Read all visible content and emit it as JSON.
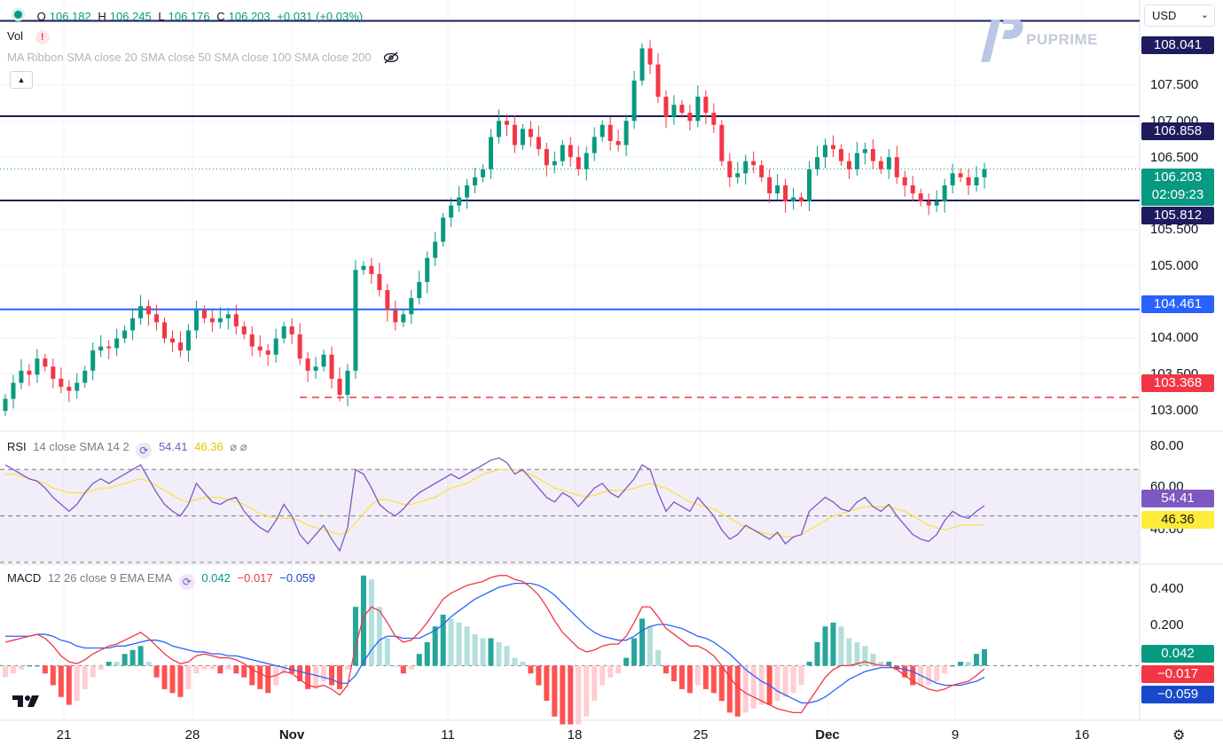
{
  "symbol_dot_color": "#089981",
  "ohlc": {
    "o_label": "O",
    "o_value": "106.182",
    "h_label": "H",
    "h_value": "106.245",
    "l_label": "L",
    "l_value": "106.176",
    "c_label": "C",
    "c_value": "106.203",
    "change": "+0.031 (+0.03%)"
  },
  "vol": {
    "label": "Vol",
    "warning": "!"
  },
  "ma_ribbon": {
    "label": "MA Ribbon SMA close 20 SMA close 50 SMA close 100 SMA close 200"
  },
  "collapse_icon": "▲",
  "currency": {
    "value": "USD",
    "chevron": "⌄"
  },
  "brand": {
    "name": "PUPRIME"
  },
  "price_axis": {
    "ticks": [
      "107.500",
      "107.000",
      "106.500",
      "105.500",
      "105.000",
      "104.000",
      "103.500",
      "103.000"
    ]
  },
  "price_tags": [
    {
      "value": "108.041",
      "color": "#1e1b5e"
    },
    {
      "value": "106.858",
      "color": "#1e1b5e"
    },
    {
      "value": "106.203",
      "sub": "02:09:23",
      "color": "#089981"
    },
    {
      "value": "105.812",
      "color": "#1e1b5e"
    },
    {
      "value": "104.461",
      "color": "#2962ff"
    },
    {
      "value": "103.368",
      "color": "#f23645"
    }
  ],
  "rsi": {
    "label": "RSI",
    "params": "14 close SMA 14 2",
    "value1": "54.41",
    "value2": "46.36",
    "ticks": [
      "80.00",
      "60.00",
      "40.00"
    ],
    "tag1": {
      "value": "54.41",
      "color": "#7e57c2"
    },
    "tag2": {
      "value": "46.36",
      "color": "#ffeb3b"
    }
  },
  "macd": {
    "label": "MACD",
    "params": "12 26 close 9 EMA EMA",
    "value1": "0.042",
    "value2": "−0.017",
    "value3": "−0.059",
    "ticks": [
      "0.400",
      "0.200"
    ],
    "tag1": {
      "value": "0.042",
      "color": "#089981"
    },
    "tag2": {
      "value": "−0.017",
      "color": "#f23645"
    },
    "tag3": {
      "value": "−0.059",
      "color": "#1848cc"
    }
  },
  "date_axis": [
    {
      "label": "21",
      "bold": false
    },
    {
      "label": "28",
      "bold": false
    },
    {
      "label": "Nov",
      "bold": true
    },
    {
      "label": "11",
      "bold": false
    },
    {
      "label": "18",
      "bold": false
    },
    {
      "label": "25",
      "bold": false
    },
    {
      "label": "Dec",
      "bold": true
    },
    {
      "label": "9",
      "bold": false
    },
    {
      "label": "16",
      "bold": false
    }
  ],
  "logo": "TV",
  "settings_icon": "⚙",
  "chart_data": {
    "type": "candlestick",
    "price": {
      "ylim": [
        102.95,
        108.3
      ],
      "horizontal_lines": [
        {
          "value": 108.041,
          "color": "#1e1b5e",
          "style": "solid"
        },
        {
          "value": 106.858,
          "color": "#1e1b5e",
          "style": "solid"
        },
        {
          "value": 105.812,
          "color": "#1e1b5e",
          "style": "solid"
        },
        {
          "value": 104.461,
          "color": "#2962ff",
          "style": "solid"
        },
        {
          "value": 103.368,
          "color": "#f23645",
          "style": "dashed"
        }
      ],
      "last_price": 106.203,
      "closes": [
        103.35,
        103.55,
        103.7,
        103.65,
        103.85,
        103.75,
        103.6,
        103.5,
        103.45,
        103.55,
        103.7,
        103.95,
        104.0,
        103.98,
        104.1,
        104.2,
        104.35,
        104.5,
        104.4,
        104.3,
        104.1,
        104.05,
        103.95,
        104.2,
        104.45,
        104.35,
        104.3,
        104.35,
        104.4,
        104.25,
        104.15,
        104.0,
        103.95,
        103.9,
        104.1,
        104.25,
        104.15,
        103.85,
        103.7,
        103.75,
        103.9,
        103.6,
        103.4,
        103.7,
        104.95,
        105.0,
        104.9,
        104.7,
        104.45,
        104.3,
        104.4,
        104.6,
        104.8,
        105.1,
        105.3,
        105.6,
        105.75,
        105.85,
        106.0,
        106.1,
        106.2,
        106.6,
        106.8,
        106.75,
        106.5,
        106.7,
        106.6,
        106.45,
        106.25,
        106.3,
        106.5,
        106.35,
        106.2,
        106.4,
        106.6,
        106.75,
        106.55,
        106.5,
        106.8,
        107.3,
        107.7,
        107.5,
        107.1,
        106.85,
        107.0,
        106.9,
        106.8,
        107.1,
        106.9,
        106.75,
        106.3,
        106.1,
        106.15,
        106.3,
        106.25,
        106.1,
        105.9,
        106.0,
        105.8,
        105.85,
        105.8,
        106.2,
        106.35,
        106.5,
        106.45,
        106.3,
        106.2,
        106.4,
        106.45,
        106.3,
        106.2,
        106.35,
        106.1,
        106.0,
        105.9,
        105.8,
        105.75,
        105.8,
        106.0,
        106.15,
        106.1,
        106.0,
        106.1,
        106.2
      ],
      "x_count": 124
    },
    "rsi": {
      "ylim": [
        30,
        85
      ],
      "band": [
        70,
        30
      ],
      "mid": 50,
      "rsi": [
        72,
        70,
        68,
        66,
        65,
        62,
        58,
        55,
        52,
        55,
        60,
        64,
        66,
        64,
        66,
        68,
        70,
        72,
        66,
        60,
        55,
        52,
        50,
        55,
        64,
        60,
        56,
        55,
        57,
        58,
        52,
        48,
        45,
        43,
        48,
        55,
        50,
        42,
        38,
        42,
        46,
        40,
        35,
        45,
        70,
        68,
        62,
        55,
        52,
        50,
        53,
        57,
        60,
        62,
        64,
        66,
        68,
        66,
        68,
        70,
        72,
        74,
        75,
        73,
        68,
        70,
        66,
        62,
        58,
        56,
        60,
        58,
        54,
        58,
        62,
        64,
        60,
        58,
        62,
        66,
        72,
        70,
        60,
        52,
        56,
        54,
        52,
        58,
        54,
        50,
        44,
        40,
        42,
        46,
        44,
        42,
        40,
        43,
        38,
        41,
        42,
        52,
        55,
        58,
        56,
        53,
        52,
        56,
        58,
        54,
        52,
        55,
        50,
        46,
        42,
        40,
        39,
        42,
        48,
        52,
        50,
        49,
        52,
        54.4
      ],
      "sma": [
        68,
        68,
        67,
        66,
        65,
        64,
        62,
        61,
        60,
        60,
        60,
        61,
        62,
        62,
        63,
        64,
        65,
        66,
        65,
        63,
        61,
        59,
        57,
        56,
        57,
        58,
        58,
        58,
        57,
        56,
        55,
        53,
        51,
        50,
        49,
        49,
        49,
        48,
        46,
        45,
        44,
        43,
        42,
        43,
        47,
        51,
        55,
        57,
        57,
        56,
        55,
        55,
        56,
        57,
        58,
        60,
        62,
        63,
        64,
        66,
        68,
        69,
        70,
        70,
        70,
        69,
        68,
        66,
        64,
        62,
        61,
        60,
        59,
        58,
        59,
        60,
        61,
        61,
        61,
        62,
        63,
        64,
        63,
        62,
        60,
        58,
        56,
        55,
        54,
        53,
        51,
        49,
        47,
        45,
        44,
        43,
        42,
        42,
        41,
        41,
        42,
        44,
        46,
        48,
        50,
        51,
        52,
        53,
        54,
        54,
        54,
        54,
        53,
        52,
        50,
        48,
        46,
        45,
        44,
        45,
        46,
        46,
        46,
        46.4
      ]
    },
    "macd": {
      "ylim": [
        -0.27,
        0.5
      ],
      "macd": [
        0.12,
        0.13,
        0.14,
        0.15,
        0.16,
        0.14,
        0.1,
        0.05,
        0.02,
        0.01,
        0.03,
        0.06,
        0.08,
        0.1,
        0.11,
        0.13,
        0.15,
        0.17,
        0.14,
        0.1,
        0.06,
        0.03,
        0.01,
        0.02,
        0.05,
        0.06,
        0.05,
        0.04,
        0.04,
        0.03,
        0.01,
        -0.02,
        -0.04,
        -0.06,
        -0.05,
        -0.03,
        -0.04,
        -0.07,
        -0.1,
        -0.11,
        -0.1,
        -0.12,
        -0.15,
        -0.1,
        0.1,
        0.25,
        0.3,
        0.28,
        0.22,
        0.15,
        0.12,
        0.13,
        0.17,
        0.22,
        0.28,
        0.34,
        0.37,
        0.39,
        0.41,
        0.42,
        0.43,
        0.45,
        0.46,
        0.46,
        0.44,
        0.43,
        0.4,
        0.36,
        0.3,
        0.23,
        0.17,
        0.13,
        0.09,
        0.07,
        0.08,
        0.1,
        0.11,
        0.11,
        0.15,
        0.22,
        0.3,
        0.3,
        0.25,
        0.19,
        0.16,
        0.13,
        0.1,
        0.1,
        0.08,
        0.05,
        0.0,
        -0.06,
        -0.11,
        -0.14,
        -0.16,
        -0.18,
        -0.2,
        -0.22,
        -0.23,
        -0.24,
        -0.24,
        -0.18,
        -0.12,
        -0.06,
        -0.02,
        0.0,
        0.0,
        0.01,
        0.02,
        0.01,
        0.0,
        0.0,
        -0.02,
        -0.05,
        -0.08,
        -0.1,
        -0.12,
        -0.13,
        -0.12,
        -0.1,
        -0.09,
        -0.08,
        -0.05,
        -0.017
      ],
      "signal": [
        0.15,
        0.15,
        0.15,
        0.15,
        0.16,
        0.16,
        0.15,
        0.13,
        0.12,
        0.1,
        0.09,
        0.09,
        0.09,
        0.09,
        0.1,
        0.1,
        0.11,
        0.12,
        0.13,
        0.13,
        0.12,
        0.1,
        0.09,
        0.08,
        0.07,
        0.07,
        0.06,
        0.06,
        0.05,
        0.05,
        0.04,
        0.03,
        0.02,
        0.01,
        0.0,
        -0.01,
        -0.02,
        -0.03,
        -0.04,
        -0.05,
        -0.06,
        -0.07,
        -0.09,
        -0.09,
        -0.05,
        0.02,
        0.08,
        0.13,
        0.15,
        0.15,
        0.14,
        0.14,
        0.14,
        0.16,
        0.18,
        0.21,
        0.25,
        0.28,
        0.31,
        0.34,
        0.36,
        0.38,
        0.4,
        0.41,
        0.42,
        0.42,
        0.42,
        0.41,
        0.39,
        0.36,
        0.32,
        0.28,
        0.24,
        0.2,
        0.17,
        0.15,
        0.14,
        0.13,
        0.13,
        0.15,
        0.18,
        0.2,
        0.21,
        0.21,
        0.2,
        0.19,
        0.17,
        0.15,
        0.14,
        0.12,
        0.09,
        0.06,
        0.02,
        -0.02,
        -0.05,
        -0.08,
        -0.1,
        -0.13,
        -0.15,
        -0.17,
        -0.19,
        -0.19,
        -0.18,
        -0.16,
        -0.13,
        -0.1,
        -0.07,
        -0.05,
        -0.03,
        -0.02,
        -0.01,
        -0.01,
        -0.01,
        -0.02,
        -0.03,
        -0.05,
        -0.07,
        -0.09,
        -0.1,
        -0.1,
        -0.1,
        -0.09,
        -0.08,
        -0.059
      ]
    }
  }
}
